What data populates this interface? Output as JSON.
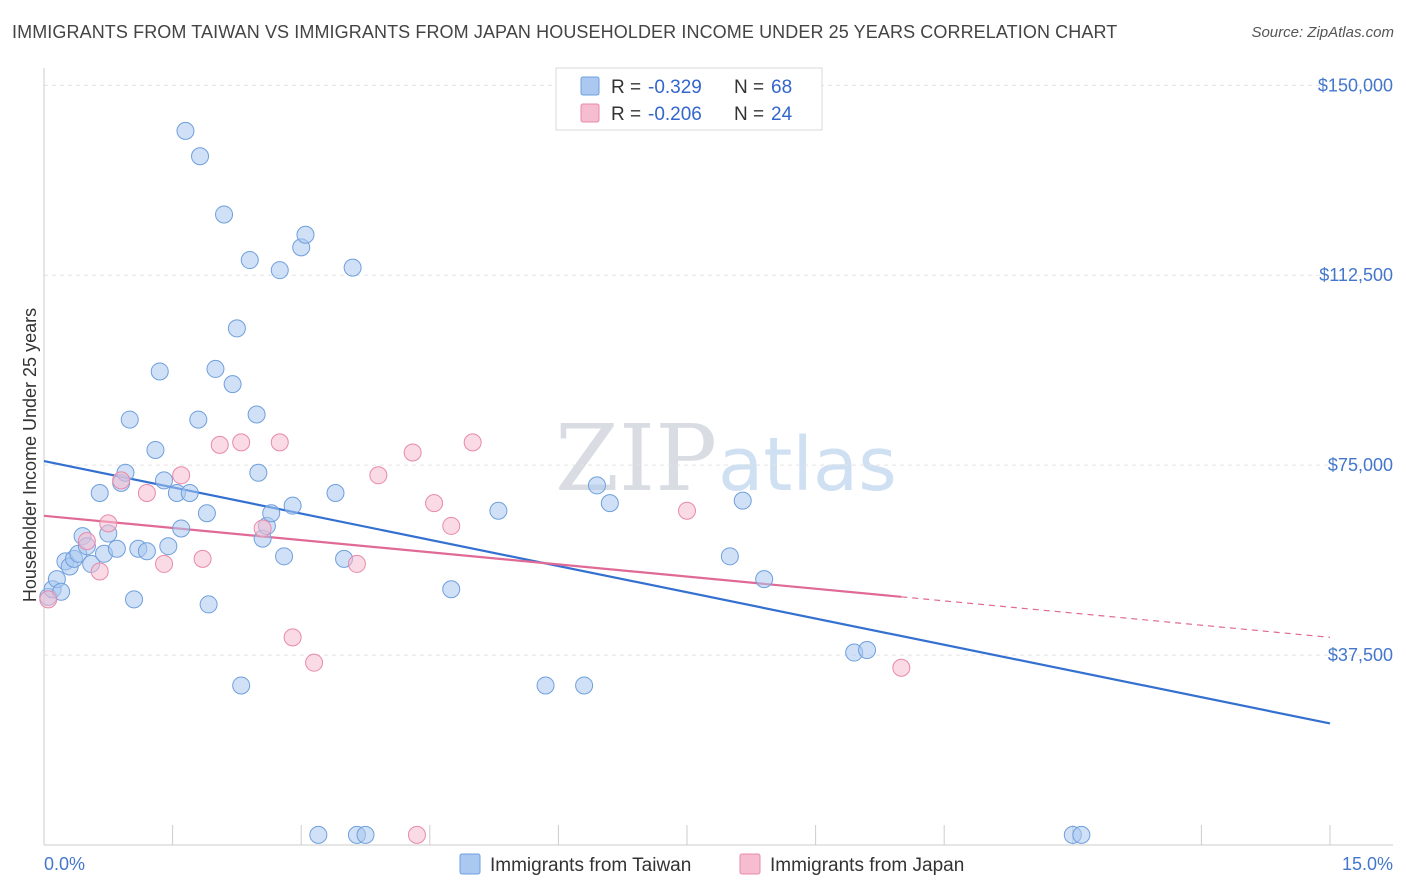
{
  "chart_data": {
    "type": "scatter",
    "title": "IMMIGRANTS FROM TAIWAN VS IMMIGRANTS FROM JAPAN HOUSEHOLDER INCOME UNDER 25 YEARS CORRELATION CHART",
    "source": "Source: ZipAtlas.com",
    "watermark": {
      "zip": "ZIP",
      "atlas": "atlas"
    },
    "ylabel": "Householder Income Under 25 years",
    "xlim": [
      0,
      15
    ],
    "ylim": [
      0,
      155000
    ],
    "x_tick_labels": [
      {
        "value": 0,
        "label": "0.0%",
        "anchor": "start"
      },
      {
        "value": 15,
        "label": "15.0%",
        "anchor": "end"
      }
    ],
    "y_ticks": [
      {
        "value": 150000,
        "label": "$150,000"
      },
      {
        "value": 112500,
        "label": "$112,500"
      },
      {
        "value": 75000,
        "label": "$75,000"
      },
      {
        "value": 37500,
        "label": "$37,500"
      }
    ],
    "x_minor_ticks": [
      1.5,
      3.0,
      4.5,
      6.0,
      7.5,
      9.0,
      10.5,
      12.0,
      13.5,
      15.0
    ],
    "series": [
      {
        "name": "Immigrants from Taiwan",
        "color": "#aac8f0",
        "stroke": "#6f9fdc",
        "line_color": "#3370d0",
        "R": "-0.329",
        "N": "68",
        "trend": {
          "x0": 0,
          "y0": 75800,
          "x1": 15,
          "y1": 24000,
          "dash_from": null
        },
        "points": [
          [
            0.05,
            49000
          ],
          [
            0.1,
            50500
          ],
          [
            0.15,
            52500
          ],
          [
            0.2,
            50000
          ],
          [
            0.25,
            56000
          ],
          [
            0.3,
            55000
          ],
          [
            0.35,
            56500
          ],
          [
            0.4,
            57500
          ],
          [
            0.45,
            61000
          ],
          [
            0.5,
            59000
          ],
          [
            0.55,
            55500
          ],
          [
            0.65,
            69500
          ],
          [
            0.7,
            57500
          ],
          [
            0.75,
            61500
          ],
          [
            0.85,
            58500
          ],
          [
            0.9,
            71500
          ],
          [
            0.95,
            73500
          ],
          [
            1.0,
            84000
          ],
          [
            1.05,
            48500
          ],
          [
            1.1,
            58500
          ],
          [
            1.2,
            58000
          ],
          [
            1.3,
            78000
          ],
          [
            1.35,
            93500
          ],
          [
            1.4,
            72000
          ],
          [
            1.45,
            59000
          ],
          [
            1.55,
            69500
          ],
          [
            1.6,
            62500
          ],
          [
            1.65,
            141000
          ],
          [
            1.7,
            69500
          ],
          [
            1.8,
            84000
          ],
          [
            1.82,
            136000
          ],
          [
            1.9,
            65500
          ],
          [
            1.92,
            47500
          ],
          [
            2.0,
            94000
          ],
          [
            2.1,
            124500
          ],
          [
            2.2,
            91000
          ],
          [
            2.25,
            102000
          ],
          [
            2.3,
            31500
          ],
          [
            2.4,
            115500
          ],
          [
            2.48,
            85000
          ],
          [
            2.5,
            73500
          ],
          [
            2.55,
            60500
          ],
          [
            2.6,
            63000
          ],
          [
            2.65,
            65500
          ],
          [
            2.75,
            113500
          ],
          [
            2.8,
            57000
          ],
          [
            2.9,
            67000
          ],
          [
            3.0,
            118000
          ],
          [
            3.05,
            120500
          ],
          [
            3.2,
            2000
          ],
          [
            3.4,
            69500
          ],
          [
            3.5,
            56500
          ],
          [
            3.6,
            114000
          ],
          [
            3.65,
            2000
          ],
          [
            3.75,
            2000
          ],
          [
            4.75,
            50500
          ],
          [
            5.3,
            66000
          ],
          [
            5.85,
            31500
          ],
          [
            6.3,
            31500
          ],
          [
            6.45,
            71000
          ],
          [
            6.6,
            67500
          ],
          [
            8.0,
            57000
          ],
          [
            8.15,
            68000
          ],
          [
            8.4,
            52500
          ],
          [
            9.45,
            38000
          ],
          [
            9.6,
            38500
          ],
          [
            12.0,
            2000
          ],
          [
            12.1,
            2000
          ]
        ]
      },
      {
        "name": "Immigrants from Japan",
        "color": "#f6bcd0",
        "stroke": "#e88aa8",
        "line_color": "#e06a95",
        "R": "-0.206",
        "N": "24",
        "trend": {
          "x0": 0,
          "y0": 65000,
          "x1": 15,
          "y1": 41000,
          "dash_from": 10.0
        },
        "points": [
          [
            0.05,
            48500
          ],
          [
            0.5,
            60000
          ],
          [
            0.65,
            54000
          ],
          [
            0.75,
            63500
          ],
          [
            0.9,
            72000
          ],
          [
            1.2,
            69500
          ],
          [
            1.4,
            55500
          ],
          [
            1.6,
            73000
          ],
          [
            1.85,
            56500
          ],
          [
            2.05,
            79000
          ],
          [
            2.3,
            79500
          ],
          [
            2.55,
            62500
          ],
          [
            2.75,
            79500
          ],
          [
            2.9,
            41000
          ],
          [
            3.15,
            36000
          ],
          [
            3.65,
            55500
          ],
          [
            3.9,
            73000
          ],
          [
            4.3,
            77500
          ],
          [
            4.35,
            2000
          ],
          [
            4.55,
            67500
          ],
          [
            4.75,
            63000
          ],
          [
            5.0,
            79500
          ],
          [
            7.5,
            66000
          ],
          [
            10.0,
            35000
          ]
        ]
      }
    ]
  }
}
